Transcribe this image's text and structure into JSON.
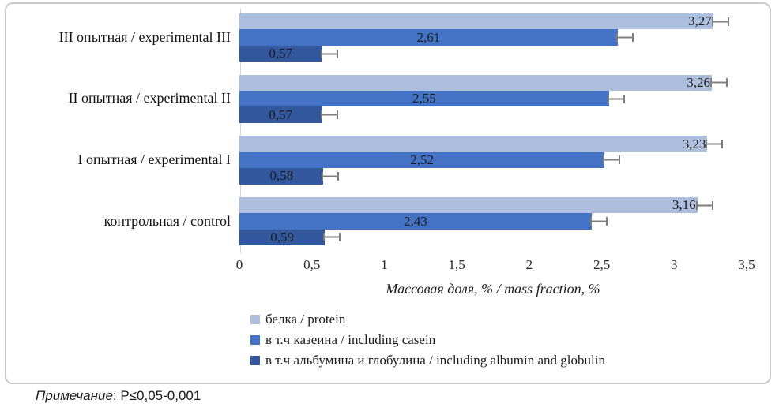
{
  "chart_data": {
    "type": "bar",
    "orientation": "horizontal",
    "row_order": "top-to-bottom",
    "categories": [
      "III опытная / experimental III",
      "II опытная / experimental II",
      "I опытная / experimental I",
      "контрольная / control"
    ],
    "series": [
      {
        "name": "белка / protein",
        "color": "#aebedf",
        "values": [
          3.27,
          3.26,
          3.23,
          3.16
        ],
        "value_labels": [
          "3,27",
          "3,26",
          "3,23",
          "3,16"
        ],
        "label_position": "inside-end"
      },
      {
        "name": "в т.ч казеина / including casein",
        "color": "#4473c5",
        "values": [
          2.61,
          2.55,
          2.52,
          2.43
        ],
        "value_labels": [
          "2,61",
          "2,55",
          "2,52",
          "2,43"
        ],
        "label_position": "center"
      },
      {
        "name": "в т.ч альбумина и глобулина / including albumin and globulin",
        "color": "#33589e",
        "values": [
          0.57,
          0.57,
          0.58,
          0.59
        ],
        "value_labels": [
          "0,57",
          "0,57",
          "0,58",
          "0,59"
        ],
        "label_position": "center"
      }
    ],
    "xlabel": "Массовая доля, % / mass fraction, %",
    "xlim": [
      0,
      3.5
    ],
    "xticks": [
      0,
      0.5,
      1,
      1.5,
      2,
      2.5,
      3,
      3.5
    ],
    "xtick_labels": [
      "0",
      "0,5",
      "1",
      "1,5",
      "2",
      "2,5",
      "3",
      "3,5"
    ],
    "error_bars": true,
    "grid": false,
    "legend_position": "bottom-left"
  },
  "note": {
    "label": "Примечание",
    "text": ": P≤0,05-0,001"
  },
  "colors": {
    "frame_border": "#c9c9c9",
    "axis_line": "#d6d6d6",
    "error_bar": "#7f7f7f",
    "text": "#1c1c1c"
  }
}
